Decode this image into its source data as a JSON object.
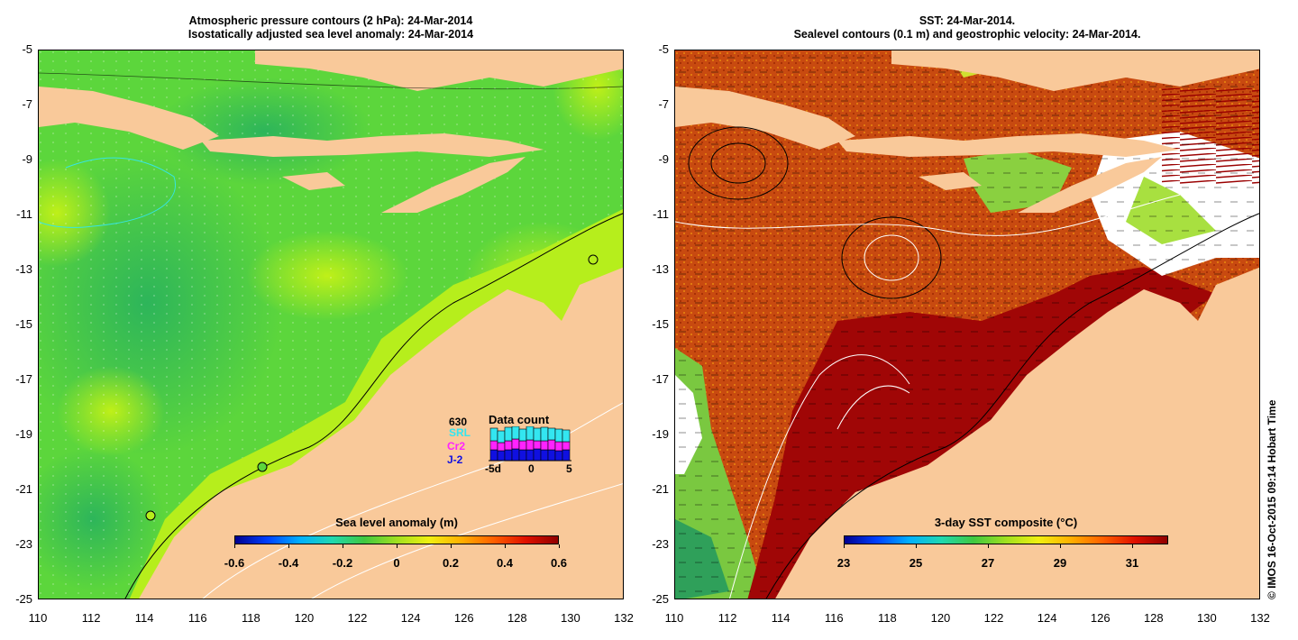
{
  "left": {
    "title_line1": "Atmospheric pressure contours (2 hPa): 24-Mar-2014",
    "title_line2": "Isostatically adjusted sea level anomaly: 24-Mar-2014",
    "colorbar_title": "Sea level anomaly (m)",
    "colorbar_ticks": [
      "-0.6",
      "-0.4",
      "-0.2",
      "0",
      "0.2",
      "0.4",
      "0.6"
    ],
    "colorbar_range": [
      -0.6,
      0.6
    ],
    "inset": {
      "count": "630",
      "title": "Data count",
      "missions": [
        {
          "name": "SRL",
          "color": "#33e6f0"
        },
        {
          "name": "Cr2",
          "color": "#ff22ff"
        },
        {
          "name": "J-2",
          "color": "#1010e0"
        }
      ],
      "x_ticks": [
        "-5d",
        "0",
        "5"
      ]
    }
  },
  "right": {
    "title_line1": "SST: 24-Mar-2014.",
    "title_line2": "Sealevel contours (0.1 m) and geostrophic velocity: 24-Mar-2014.",
    "colorbar_title": "3-day SST composite (°C)",
    "colorbar_ticks": [
      "23",
      "25",
      "27",
      "29",
      "31"
    ],
    "colorbar_range": [
      23,
      32
    ]
  },
  "axes": {
    "lat_ticks": [
      "-5",
      "-7",
      "-9",
      "-11",
      "-13",
      "-15",
      "-17",
      "-19",
      "-21",
      "-23",
      "-25"
    ],
    "lon_ticks": [
      "110",
      "112",
      "114",
      "116",
      "118",
      "120",
      "122",
      "124",
      "126",
      "128",
      "130",
      "132"
    ],
    "lon_range": [
      110,
      132
    ],
    "lat_range": [
      -25,
      -5
    ]
  },
  "credit": "© IMOS 16-Oct-2015 09:14 Hobart Time",
  "colors": {
    "land": "#f9c99a",
    "ocean_left": "#5cd63c",
    "ocean_right": "#c0420e",
    "warm_shelf": "#a00606"
  }
}
